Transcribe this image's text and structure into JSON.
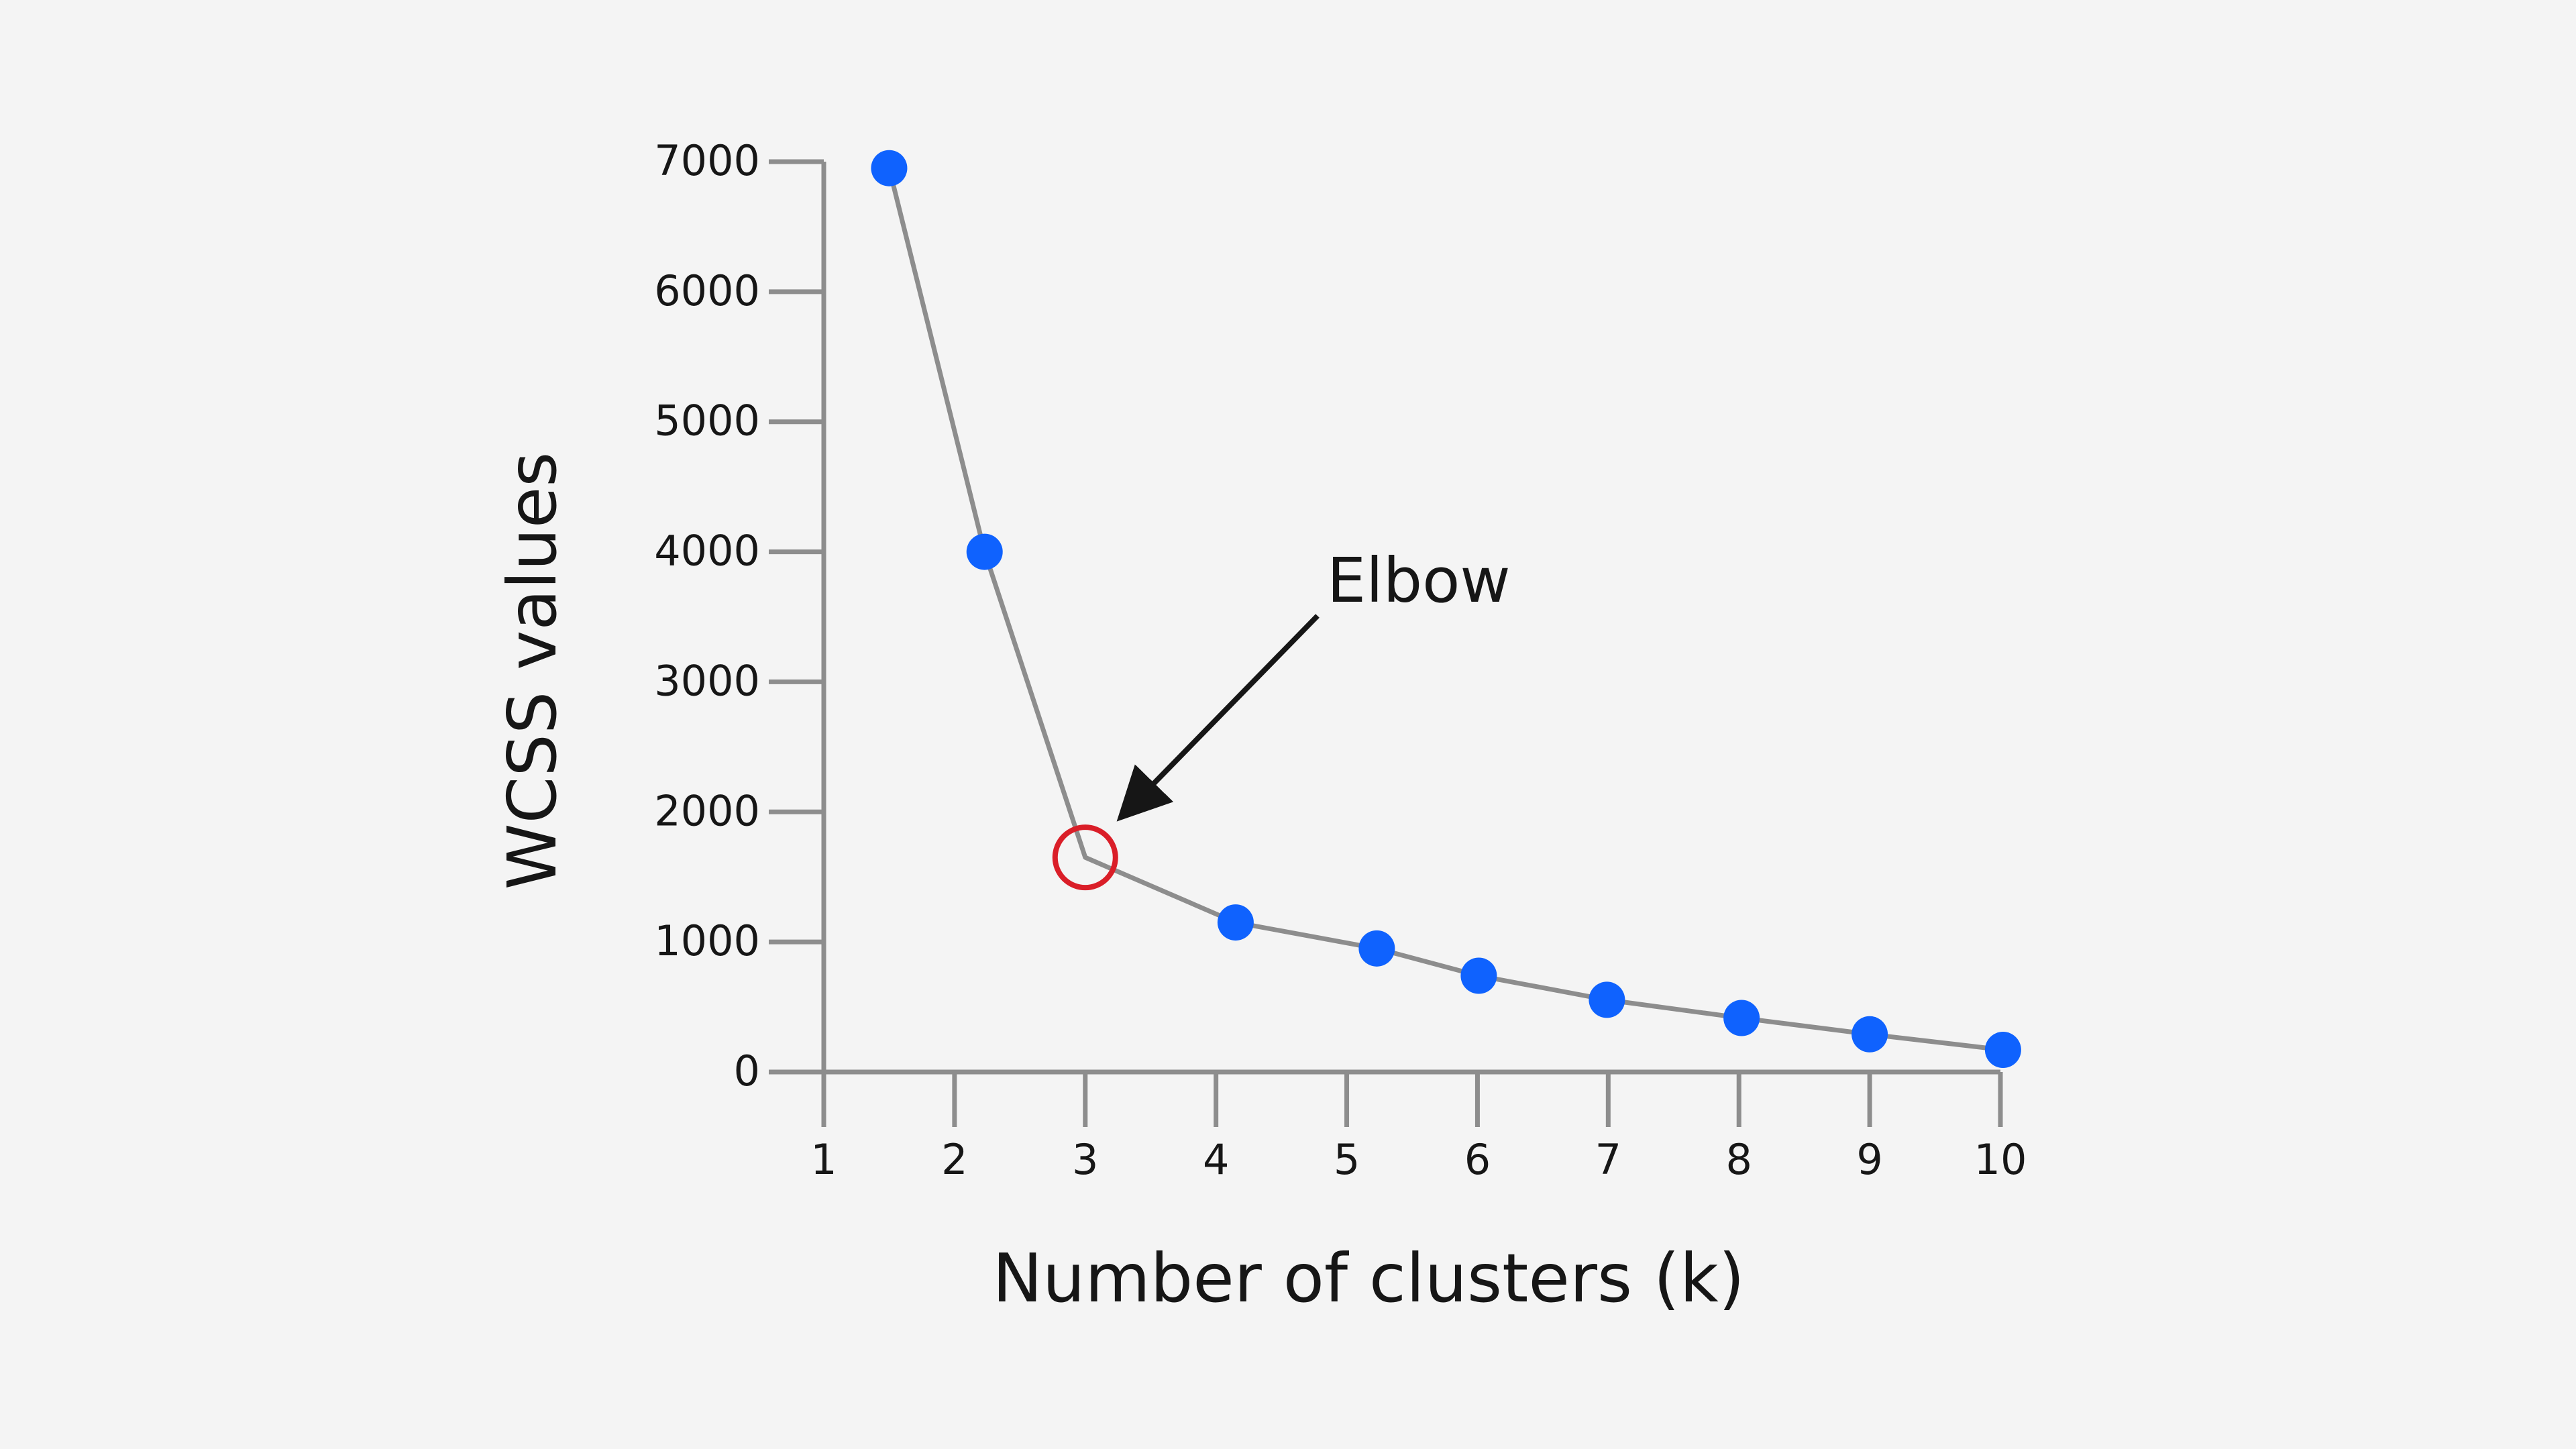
{
  "chart_data": {
    "type": "line",
    "title": "",
    "xlabel": "Number of clusters (k)",
    "ylabel": "WCSS values",
    "x_ticks": [
      "1",
      "2",
      "3",
      "4",
      "5",
      "6",
      "7",
      "8",
      "9",
      "10"
    ],
    "y_ticks": [
      "0",
      "1000",
      "2000",
      "3000",
      "4000",
      "5000",
      "6000",
      "7000"
    ],
    "xlim": [
      1,
      10
    ],
    "ylim": [
      0,
      7000
    ],
    "grid": false,
    "series": [
      {
        "points": [
          {
            "x": 1.5,
            "y": 6950
          },
          {
            "x": 2.23,
            "y": 4000
          },
          {
            "x": 3,
            "y": 1650
          },
          {
            "x": 4.15,
            "y": 1150
          },
          {
            "x": 5.23,
            "y": 950
          },
          {
            "x": 6.01,
            "y": 740
          },
          {
            "x": 6.99,
            "y": 555
          },
          {
            "x": 8.02,
            "y": 415
          },
          {
            "x": 9.0,
            "y": 290
          },
          {
            "x": 10.02,
            "y": 170
          }
        ],
        "highlight_index": 2
      }
    ],
    "annotation": {
      "text": "Elbow",
      "point_index": 2
    },
    "colors": {
      "marker": "#0f62fe",
      "line": "#8d8d8d",
      "axis": "#8d8d8d",
      "highlight": "#da1e28",
      "arrow": "#161616",
      "background": "#f4f4f4"
    }
  }
}
